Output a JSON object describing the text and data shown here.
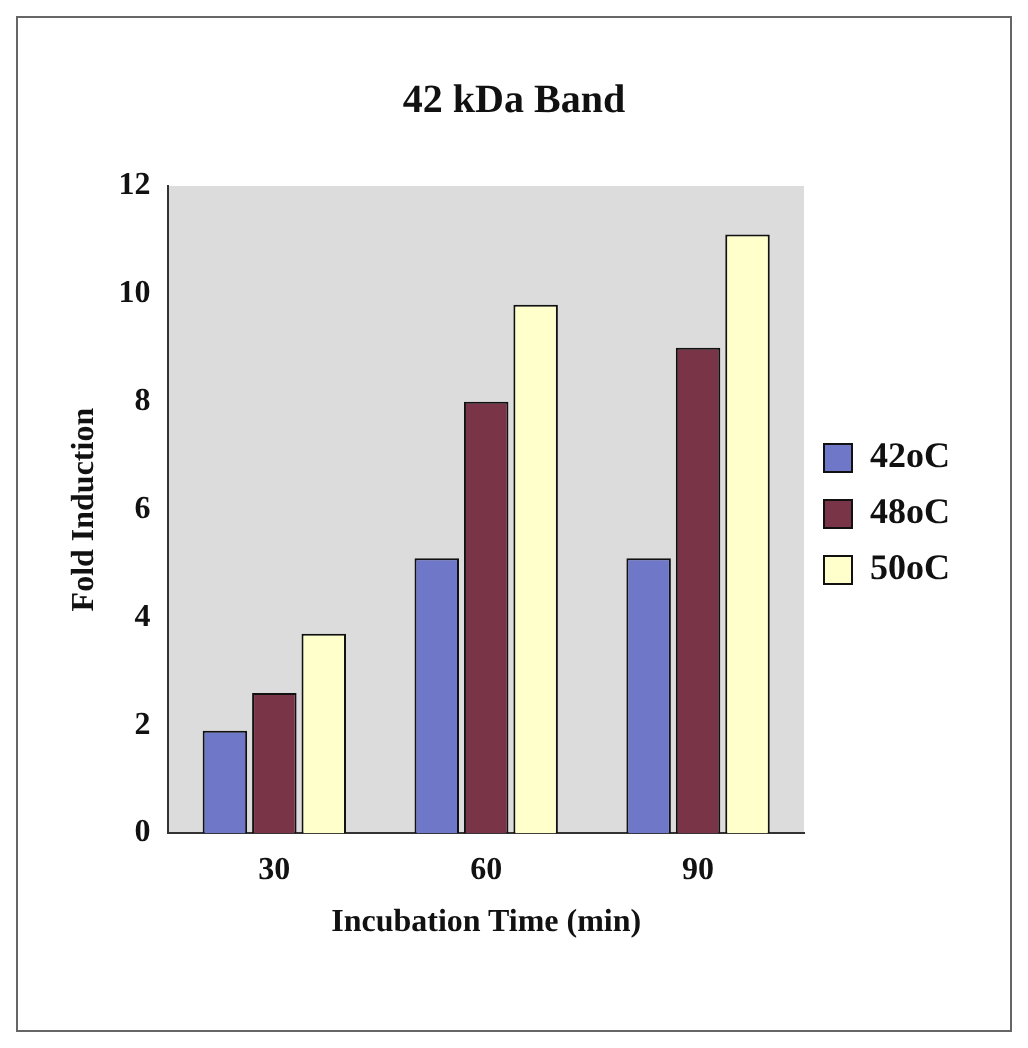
{
  "chart_data": {
    "type": "bar",
    "title": "42 kDa Band",
    "xlabel": "Incubation Time (min)",
    "ylabel": "Fold Induction",
    "categories": [
      "30",
      "60",
      "90"
    ],
    "series": [
      {
        "name": "42oC",
        "color": "#6f77c8",
        "values": [
          1.9,
          5.1,
          5.1
        ]
      },
      {
        "name": "48oC",
        "color": "#7a3448",
        "values": [
          2.6,
          8.0,
          9.0
        ]
      },
      {
        "name": "50oC",
        "color": "#ffffcc",
        "values": [
          3.7,
          9.8,
          11.1
        ]
      }
    ],
    "ylim": [
      0,
      12
    ],
    "yticks": [
      0,
      2,
      4,
      6,
      8,
      10,
      12
    ],
    "grid": false,
    "legend": "right"
  }
}
